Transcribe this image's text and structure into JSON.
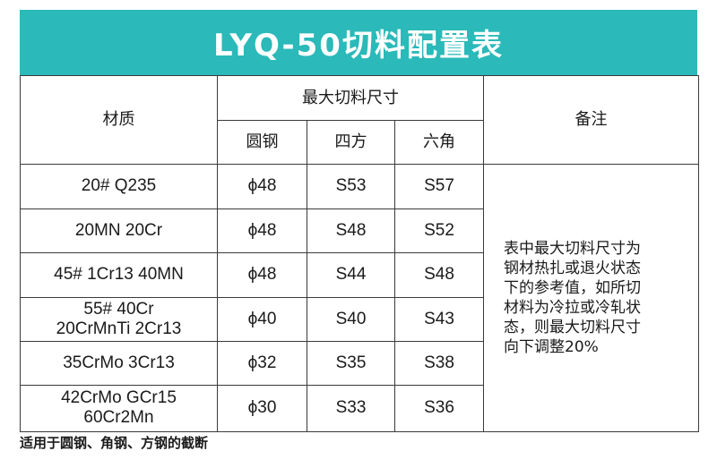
{
  "title": "LYQ-50切料配置表",
  "table": {
    "headers": {
      "material": "材质",
      "max_size": "最大切料尺寸",
      "round": "圆钢",
      "square": "四方",
      "hex": "六角",
      "remarks": "备注"
    },
    "rows": [
      {
        "material": [
          "20#  Q235"
        ],
        "round": "ϕ48",
        "square": "S53",
        "hex": "S57"
      },
      {
        "material": [
          "20MN   20Cr"
        ],
        "round": "ϕ48",
        "square": "S48",
        "hex": "S52"
      },
      {
        "material": [
          "45#  1Cr13  40MN"
        ],
        "round": "ϕ48",
        "square": "S44",
        "hex": "S48"
      },
      {
        "material": [
          "55#   40Cr",
          "20CrMnTi  2Cr13"
        ],
        "round": "ϕ40",
        "square": "S40",
        "hex": "S43"
      },
      {
        "material": [
          "35CrMo   3Cr13"
        ],
        "round": "ϕ32",
        "square": "S35",
        "hex": "S38"
      },
      {
        "material": [
          "42CrMo   GCr15",
          "60Cr2Mn"
        ],
        "round": "ϕ30",
        "square": "S33",
        "hex": "S36"
      }
    ],
    "remark_lines": [
      "表中最大切料尺寸为",
      "钢材热扎或退火状态",
      "下的参考值，如所切",
      "材料为冷拉或冷轧状",
      "态，则最大切料尺寸",
      "向下调整20%"
    ]
  },
  "footer": "适用于圆钢、角钢、方钢的截断"
}
